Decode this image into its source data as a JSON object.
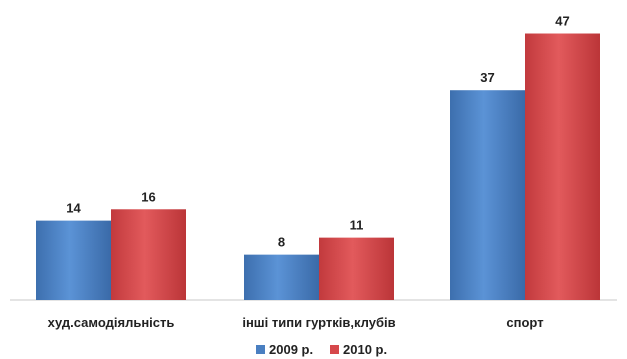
{
  "chart_data": {
    "type": "bar",
    "categories": [
      "худ.самодіяльність",
      "інші типи гуртків,клубів",
      "спорт"
    ],
    "series": [
      {
        "name": "2009 р.",
        "values": [
          14,
          8,
          37
        ],
        "color": "#4a7fc1"
      },
      {
        "name": "2010 р.",
        "values": [
          16,
          11,
          47
        ],
        "color": "#d6484b"
      }
    ],
    "ylim": [
      0,
      50
    ],
    "grid": false,
    "legend_position": "bottom-center",
    "data_labels": true
  }
}
